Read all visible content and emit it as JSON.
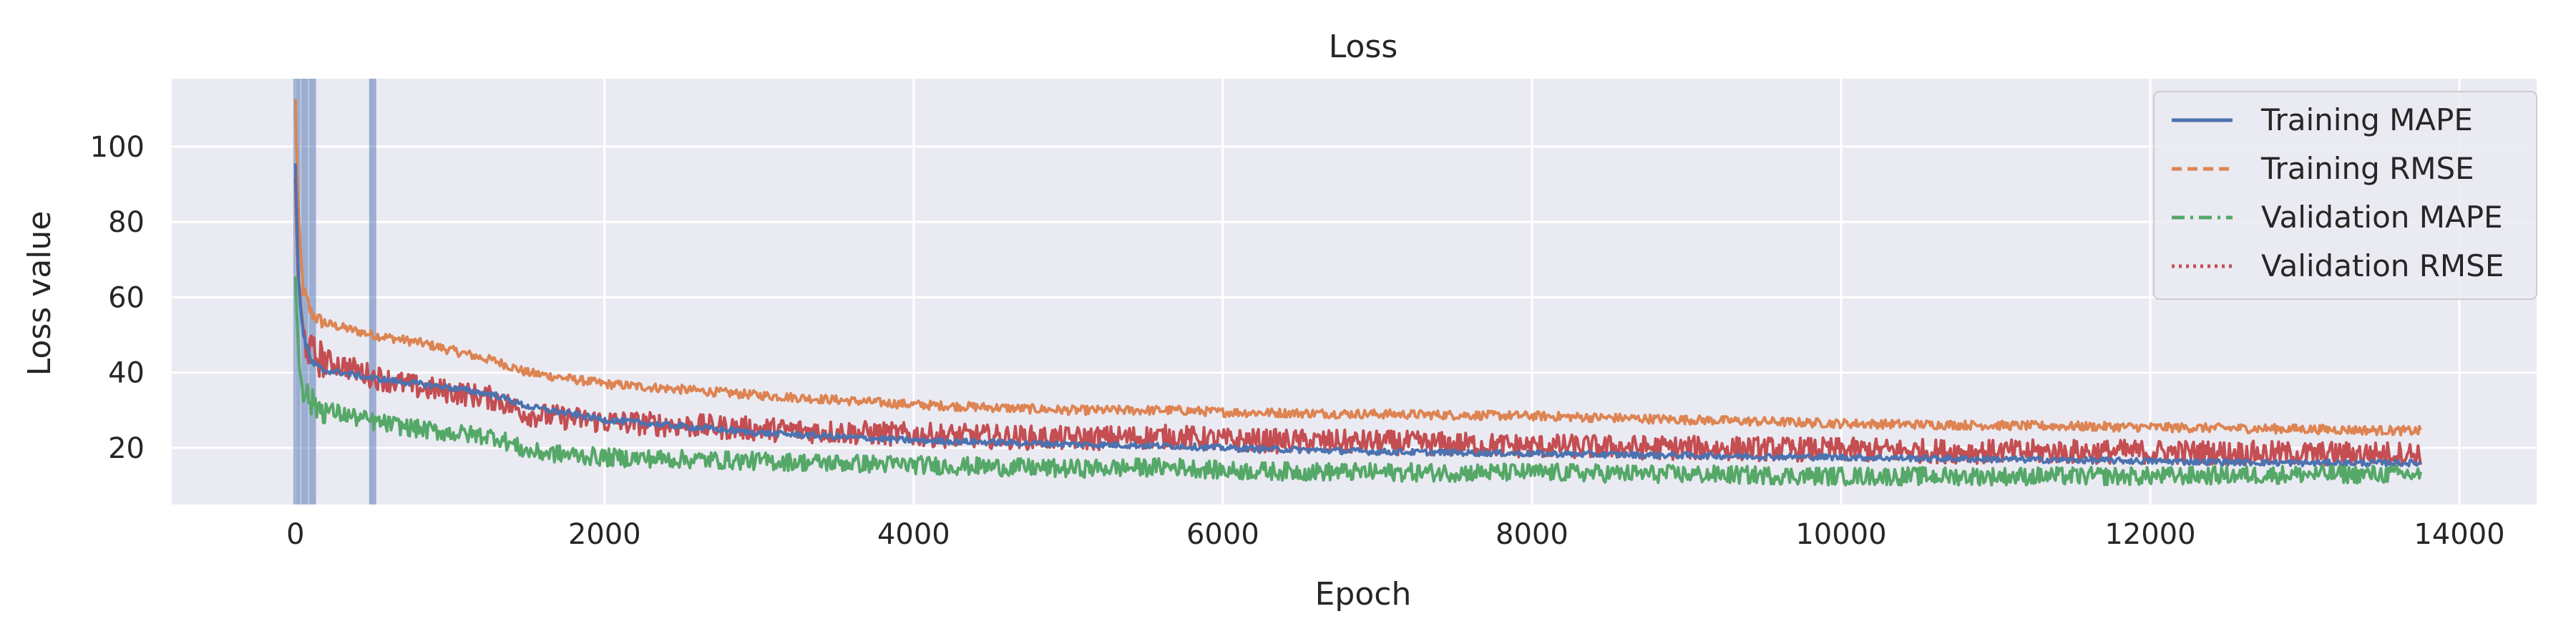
{
  "chart_data": {
    "type": "line",
    "title": "Loss",
    "xlabel": "Epoch",
    "ylabel": "Loss value",
    "xlim": [
      -800,
      14500
    ],
    "ylim": [
      5,
      118
    ],
    "xticks": [
      0,
      2000,
      4000,
      6000,
      8000,
      10000,
      12000,
      14000
    ],
    "yticks": [
      20,
      40,
      60,
      80,
      100
    ],
    "grid": true,
    "legend_position": "top-right",
    "background_color": "#eaeaf2",
    "vertical_markers": [
      {
        "x": 10,
        "color": "#4c72b0"
      },
      {
        "x": 60,
        "color": "#4c72b0"
      },
      {
        "x": 110,
        "color": "#4c72b0"
      },
      {
        "x": 500,
        "color": "#4c72b0"
      }
    ],
    "series": [
      {
        "name": "Training MAPE",
        "color": "#4c72b0",
        "dash": "solid",
        "noise": 0.8,
        "x": [
          0,
          20,
          50,
          100,
          150,
          200,
          300,
          500,
          800,
          1000,
          1300,
          1500,
          2000,
          3000,
          4000,
          5000,
          5700,
          6000,
          7000,
          8000,
          9000,
          10000,
          11000,
          12000,
          13000,
          13750
        ],
        "values": [
          95,
          65,
          50,
          43,
          41,
          40.5,
          40,
          38.5,
          37,
          36,
          34,
          31,
          27.5,
          24,
          22,
          21,
          20.5,
          20,
          19,
          18.5,
          18,
          17.5,
          17,
          16.5,
          16,
          16
        ]
      },
      {
        "name": "Training RMSE",
        "color": "#dd8452",
        "dash": "dashed",
        "noise": 1.2,
        "x": [
          0,
          20,
          50,
          100,
          150,
          200,
          300,
          500,
          800,
          1000,
          1300,
          1500,
          2000,
          3000,
          4000,
          5000,
          5700,
          6000,
          7000,
          8000,
          9000,
          10000,
          11000,
          12000,
          13000,
          13750
        ],
        "values": [
          112,
          80,
          62,
          56,
          54,
          53,
          52,
          50,
          48,
          46,
          43,
          40,
          37,
          34,
          31.5,
          30,
          30,
          29.5,
          29,
          28.5,
          27.5,
          26.5,
          26,
          25.5,
          25,
          24.5
        ]
      },
      {
        "name": "Validation MAPE",
        "color": "#55a868",
        "dash": "dashdot",
        "noise": 2.4,
        "x": [
          0,
          20,
          50,
          100,
          150,
          200,
          300,
          500,
          800,
          1000,
          1300,
          1500,
          2000,
          3000,
          4000,
          5000,
          5700,
          6000,
          7000,
          8000,
          9000,
          10000,
          11000,
          12000,
          13000,
          13750
        ],
        "values": [
          66,
          45,
          36,
          32,
          31,
          30,
          29,
          27,
          25,
          24,
          23,
          19,
          17.5,
          16.5,
          15.5,
          14.5,
          15,
          14,
          13.5,
          13.5,
          13,
          12.5,
          12.5,
          12.5,
          13,
          13
        ]
      },
      {
        "name": "Validation RMSE",
        "color": "#c44e52",
        "dash": "dotted",
        "noise": 3.2,
        "x": [
          0,
          20,
          50,
          100,
          150,
          200,
          300,
          500,
          800,
          1000,
          1300,
          1500,
          2000,
          3000,
          4000,
          5000,
          5700,
          6000,
          7000,
          8000,
          9000,
          10000,
          11000,
          12000,
          13000,
          13750
        ],
        "values": [
          92,
          62,
          50,
          45,
          44,
          43,
          42,
          39,
          36,
          35,
          33,
          29,
          27,
          25,
          23.5,
          22.5,
          23,
          22,
          21.5,
          20.5,
          20,
          19.5,
          19,
          19,
          18.5,
          18.5
        ]
      }
    ]
  }
}
